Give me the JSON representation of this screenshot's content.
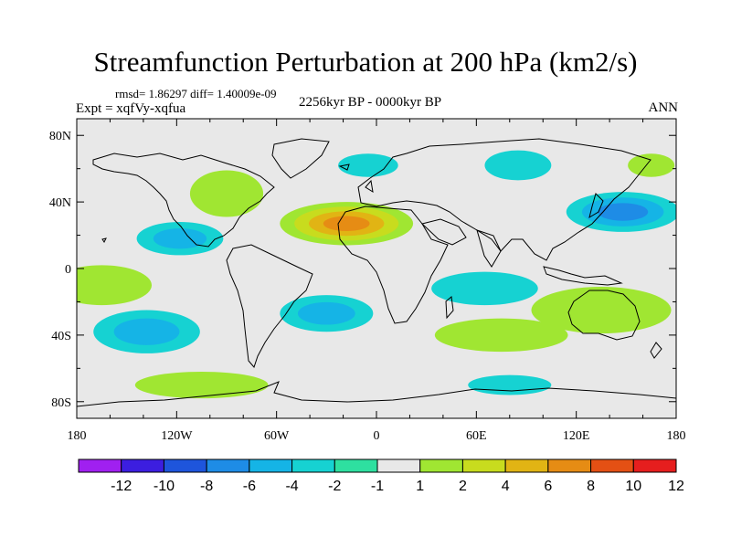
{
  "title": "Streamfunction Perturbation at 200 hPa (km2/s)",
  "stats_line": "rmsd= 1.86297 diff= 1.40009e-09",
  "experiment": "Expt = xqfVy-xqfua",
  "period": "2256kyr BP - 0000kyr BP",
  "season": "ANN",
  "map": {
    "projection": "cylindrical equidistant",
    "lon_ticks": [
      "180",
      "120W",
      "60W",
      "0",
      "60E",
      "120E",
      "180"
    ],
    "lat_ticks": [
      "80N",
      "40N",
      "0",
      "40S",
      "80S"
    ],
    "background_color": "#e8e8e8",
    "coast_color": "#000000",
    "anomalies": [
      {
        "name": "north-atlantic-max",
        "lon": -18,
        "lat": 27,
        "rx": 40,
        "ry": 13,
        "level": 8
      },
      {
        "name": "north-pacific-min",
        "lon": 148,
        "lat": 34,
        "rx": 34,
        "ry": 12,
        "level": -6
      },
      {
        "name": "central-pacific-min",
        "lon": -118,
        "lat": 18,
        "rx": 26,
        "ry": 10,
        "level": -4
      },
      {
        "name": "east-pacific-tropical-max",
        "lon": -165,
        "lat": -10,
        "rx": 30,
        "ry": 12,
        "level": 2
      },
      {
        "name": "south-pacific-min",
        "lon": -138,
        "lat": -38,
        "rx": 32,
        "ry": 13,
        "level": -4
      },
      {
        "name": "south-atlantic-min",
        "lon": -30,
        "lat": -27,
        "rx": 28,
        "ry": 11,
        "level": -4
      },
      {
        "name": "indian-ocean-min",
        "lon": 65,
        "lat": -12,
        "rx": 32,
        "ry": 10,
        "level": -2
      },
      {
        "name": "siberia-min",
        "lon": 85,
        "lat": 62,
        "rx": 20,
        "ry": 9,
        "level": -2
      },
      {
        "name": "north-atlantic-high-lat-min",
        "lon": -5,
        "lat": 62,
        "rx": 18,
        "ry": 7,
        "level": -2
      },
      {
        "name": "australia-max",
        "lon": 135,
        "lat": -25,
        "rx": 42,
        "ry": 14,
        "level": 2
      },
      {
        "name": "southern-ocean-indian-max",
        "lon": 75,
        "lat": -40,
        "rx": 40,
        "ry": 10,
        "level": 2
      },
      {
        "name": "southern-ocean-pacific-max",
        "lon": -105,
        "lat": -70,
        "rx": 40,
        "ry": 8,
        "level": 2
      },
      {
        "name": "antarctic-indian-min",
        "lon": 80,
        "lat": -70,
        "rx": 25,
        "ry": 6,
        "level": -2
      },
      {
        "name": "northeast-pacific-max",
        "lon": 165,
        "lat": 62,
        "rx": 14,
        "ry": 7,
        "level": 2
      },
      {
        "name": "north-america-max",
        "lon": -90,
        "lat": 45,
        "rx": 22,
        "ry": 14,
        "level": 2
      }
    ]
  },
  "colorbar": {
    "labels": [
      "-12",
      "-10",
      "-8",
      "-6",
      "-4",
      "-2",
      "-1",
      "1",
      "2",
      "4",
      "6",
      "8",
      "10",
      "12"
    ],
    "colors": [
      "#a020f0",
      "#3c1ee0",
      "#1e55dc",
      "#1e8ce6",
      "#15b4e6",
      "#16d2d2",
      "#2ee0a0",
      "#e8e8e8",
      "#a0e632",
      "#c8dc1e",
      "#e1b414",
      "#e68c14",
      "#e45014",
      "#e61e1e"
    ]
  }
}
